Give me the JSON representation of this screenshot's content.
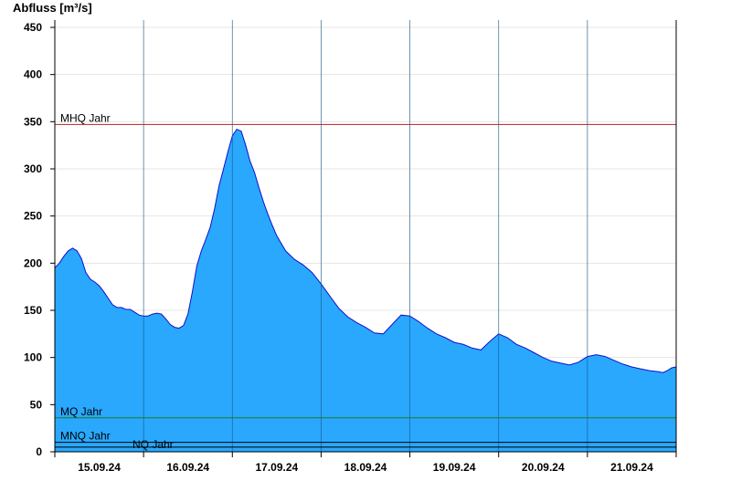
{
  "chart_data": {
    "type": "area",
    "ylabel": "Abfluss [m³/s]",
    "ylim": [
      0,
      460
    ],
    "yticks": [
      0,
      50,
      100,
      150,
      200,
      250,
      300,
      350,
      400,
      450
    ],
    "xlim": [
      0,
      7
    ],
    "day_labels": [
      "15.09.24",
      "16.09.24",
      "17.09.24",
      "18.09.24",
      "19.09.24",
      "20.09.24",
      "21.09.24"
    ],
    "grid": true,
    "fill_color": "#29a8fe",
    "line_color": "#1010c8",
    "series": [
      {
        "x": [
          0,
          0.05,
          0.1,
          0.15,
          0.2,
          0.25,
          0.3,
          0.35,
          0.4,
          0.45,
          0.5,
          0.55,
          0.6,
          0.65,
          0.7,
          0.75,
          0.8,
          0.85,
          0.9,
          0.95,
          1.0,
          1.05,
          1.1,
          1.15,
          1.2,
          1.25,
          1.3,
          1.35,
          1.4,
          1.45,
          1.5,
          1.55,
          1.6,
          1.65,
          1.7,
          1.75,
          1.8,
          1.85,
          1.9,
          1.95,
          2.0,
          2.05,
          2.1,
          2.15,
          2.2,
          2.25,
          2.3,
          2.35,
          2.4,
          2.45,
          2.5,
          2.6,
          2.7,
          2.8,
          2.9,
          3.0,
          3.1,
          3.2,
          3.3,
          3.4,
          3.5,
          3.6,
          3.7,
          3.8,
          3.9,
          4.0,
          4.1,
          4.2,
          4.3,
          4.4,
          4.5,
          4.6,
          4.7,
          4.8,
          4.9,
          5.0,
          5.1,
          5.2,
          5.3,
          5.4,
          5.5,
          5.6,
          5.7,
          5.8,
          5.9,
          6.0,
          6.1,
          6.2,
          6.3,
          6.4,
          6.5,
          6.6,
          6.7,
          6.8,
          6.85,
          6.9,
          6.95,
          7.0
        ],
        "y": [
          195,
          200,
          207,
          213,
          216,
          213,
          205,
          190,
          183,
          180,
          176,
          170,
          163,
          156,
          153,
          153,
          151,
          151,
          148,
          145,
          144,
          144,
          146,
          147,
          146,
          141,
          135,
          132,
          131,
          134,
          146,
          170,
          197,
          213,
          225,
          238,
          258,
          282,
          300,
          318,
          335,
          342,
          340,
          325,
          308,
          296,
          280,
          265,
          252,
          240,
          229,
          213,
          204,
          198,
          190,
          178,
          165,
          152,
          143,
          137,
          132,
          126,
          125,
          135,
          145,
          144,
          138,
          131,
          125,
          121,
          116,
          114,
          110,
          108,
          117,
          125,
          121,
          114,
          110,
          105,
          100,
          96,
          94,
          92,
          95,
          101,
          103,
          101,
          97,
          93,
          90,
          88,
          86,
          85,
          84,
          86,
          89,
          90
        ]
      }
    ],
    "reference_lines": [
      {
        "label": "MHQ Jahr",
        "value": 347,
        "color": "#b22222"
      },
      {
        "label": "MQ Jahr",
        "value": 36,
        "color": "#1e7b1e"
      },
      {
        "label": "MNQ Jahr",
        "value": 10,
        "color": "#000000"
      },
      {
        "label": "NQ Jahr",
        "value": 5,
        "color": "#000000"
      }
    ]
  }
}
